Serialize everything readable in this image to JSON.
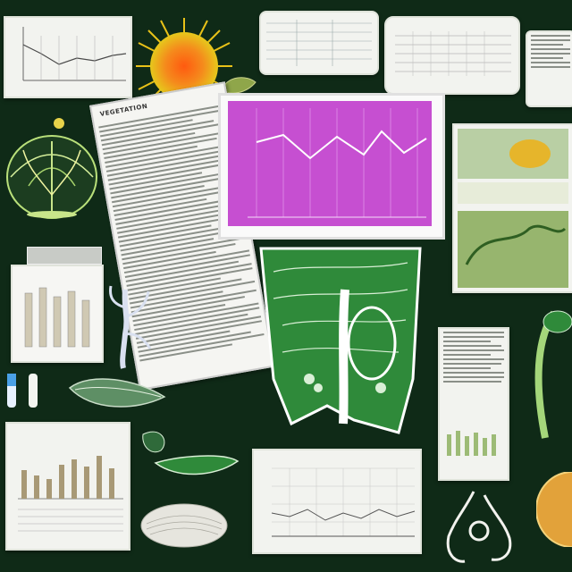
{
  "scene": {
    "background_color": "#0f2a17",
    "accent_magenta": "#c64fd1",
    "leaf_green": "#2f8a3a",
    "sun_orange": "#f07a1a"
  },
  "header_text": "Vegetation",
  "icons": [
    "sun-icon",
    "plant-dome-icon",
    "leaf-section-icon",
    "root-icon",
    "seed-icon",
    "flower-icon",
    "test-tube-icon"
  ]
}
